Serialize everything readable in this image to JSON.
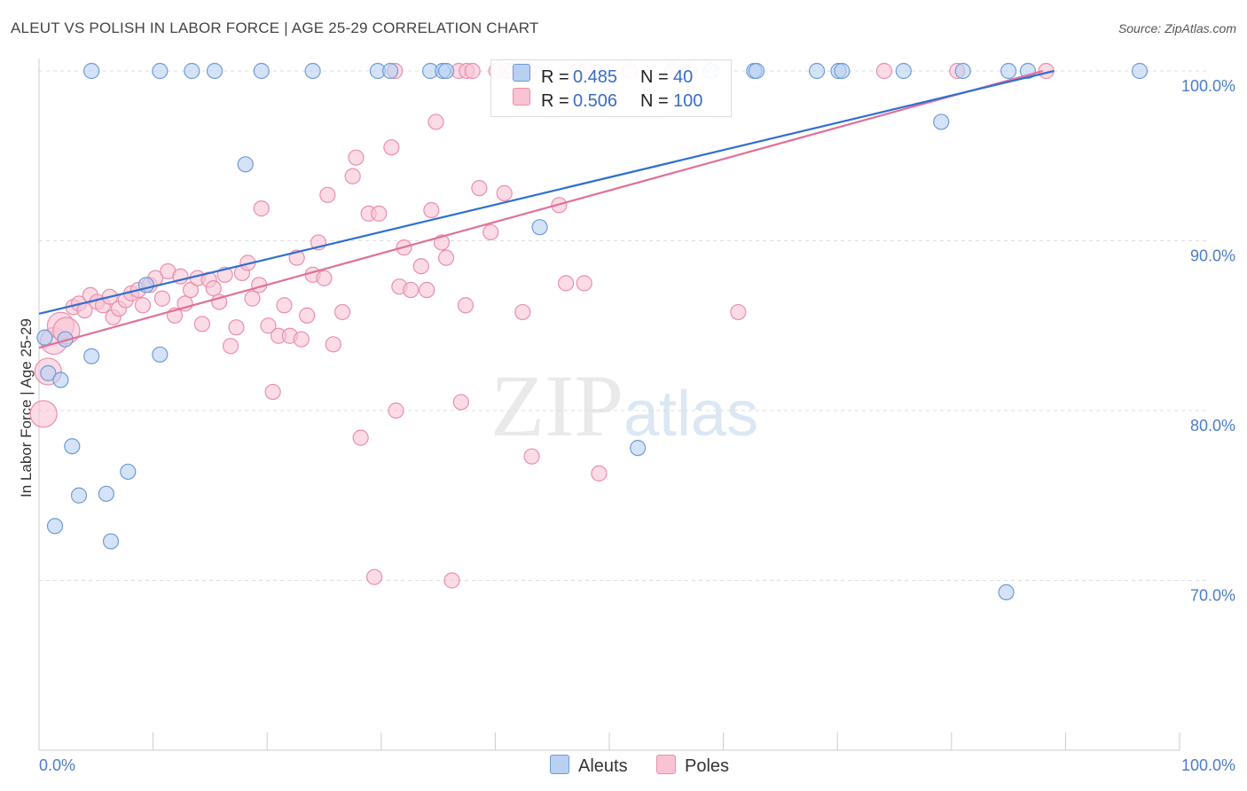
{
  "title": "ALEUT VS POLISH IN LABOR FORCE | AGE 25-29 CORRELATION CHART",
  "source": "Source: ZipAtlas.com",
  "watermark": {
    "zip": "ZIP",
    "atlas": "atlas"
  },
  "colors": {
    "aleut_fill": "#b8d0f2",
    "aleut_stroke": "#6f9bd6",
    "aleut_line": "#2f6fd0",
    "poles_fill": "#f8c3d3",
    "poles_stroke": "#e98fac",
    "poles_line": "#e0709a",
    "grid": "#dddddd",
    "tick_text": "#4a7cc9"
  },
  "legend": {
    "rows": [
      {
        "r_label": "R =",
        "r_value": "0.485",
        "n_label": "N =",
        "n_value": "40"
      },
      {
        "r_label": "R =",
        "r_value": "0.506",
        "n_label": "N =",
        "n_value": "100"
      }
    ]
  },
  "bottom_legend": {
    "aleuts": "Aleuts",
    "poles": "Poles"
  },
  "chart_data": {
    "type": "scatter",
    "title": "ALEUT VS POLISH IN LABOR FORCE | AGE 25-29 CORRELATION CHART",
    "xlabel": "",
    "ylabel": "In Labor Force | Age 25-29",
    "xlim": [
      0,
      100
    ],
    "ylim": [
      60,
      100
    ],
    "x_tick_labels": [
      "0.0%",
      "100.0%"
    ],
    "y_ticks": [
      70,
      80,
      90,
      100
    ],
    "y_tick_labels": [
      "70.0%",
      "80.0%",
      "90.0%",
      "100.0%"
    ],
    "grid": "horizontal dashed",
    "legend_position": "top-center",
    "series": [
      {
        "name": "Aleuts",
        "r": 0.485,
        "n": 40,
        "trend": [
          [
            0,
            85.7
          ],
          [
            89,
            100
          ]
        ],
        "points": [
          [
            0.5,
            84.3
          ],
          [
            0.8,
            82.2
          ],
          [
            1.4,
            73.2
          ],
          [
            1.9,
            81.8
          ],
          [
            2.3,
            84.2
          ],
          [
            2.9,
            77.9
          ],
          [
            3.5,
            75.0
          ],
          [
            4.6,
            83.2
          ],
          [
            5.9,
            75.1
          ],
          [
            6.3,
            72.3
          ],
          [
            7.8,
            76.4
          ],
          [
            9.4,
            87.4
          ],
          [
            10.6,
            83.3
          ],
          [
            18.1,
            94.5
          ],
          [
            43.9,
            90.8
          ],
          [
            52.5,
            77.8
          ],
          [
            79.1,
            97.0
          ],
          [
            84.8,
            69.3
          ],
          [
            4.6,
            100
          ],
          [
            10.6,
            100
          ],
          [
            13.4,
            100
          ],
          [
            15.4,
            100
          ],
          [
            19.5,
            100
          ],
          [
            24.0,
            100
          ],
          [
            29.7,
            100
          ],
          [
            30.8,
            100
          ],
          [
            34.3,
            100
          ],
          [
            35.4,
            100
          ],
          [
            35.7,
            100
          ],
          [
            58.9,
            100
          ],
          [
            62.7,
            100
          ],
          [
            62.9,
            100
          ],
          [
            68.2,
            100
          ],
          [
            70.1,
            100
          ],
          [
            70.4,
            100
          ],
          [
            75.8,
            100
          ],
          [
            81.0,
            100
          ],
          [
            85.0,
            100
          ],
          [
            86.7,
            100
          ],
          [
            96.5,
            100
          ]
        ]
      },
      {
        "name": "Poles",
        "r": 0.506,
        "n": 100,
        "trend": [
          [
            0,
            83.7
          ],
          [
            88,
            100
          ]
        ],
        "points": [
          [
            0.4,
            79.8
          ],
          [
            0.8,
            82.3
          ],
          [
            1.3,
            84.1
          ],
          [
            1.9,
            85.0
          ],
          [
            2.4,
            84.7
          ],
          [
            3.0,
            86.1
          ],
          [
            3.5,
            86.3
          ],
          [
            4.0,
            85.9
          ],
          [
            4.5,
            86.8
          ],
          [
            5.1,
            86.4
          ],
          [
            5.6,
            86.2
          ],
          [
            6.2,
            86.7
          ],
          [
            6.5,
            85.5
          ],
          [
            7.0,
            86.0
          ],
          [
            7.6,
            86.5
          ],
          [
            8.1,
            86.9
          ],
          [
            8.7,
            87.1
          ],
          [
            9.1,
            86.2
          ],
          [
            9.7,
            87.4
          ],
          [
            10.2,
            87.8
          ],
          [
            10.8,
            86.6
          ],
          [
            11.3,
            88.2
          ],
          [
            11.9,
            85.6
          ],
          [
            12.4,
            87.9
          ],
          [
            12.8,
            86.3
          ],
          [
            13.3,
            87.1
          ],
          [
            13.9,
            87.8
          ],
          [
            14.3,
            85.1
          ],
          [
            14.9,
            87.7
          ],
          [
            15.3,
            87.2
          ],
          [
            15.8,
            86.4
          ],
          [
            16.3,
            88.0
          ],
          [
            16.8,
            83.8
          ],
          [
            17.3,
            84.9
          ],
          [
            17.8,
            88.1
          ],
          [
            18.3,
            88.7
          ],
          [
            18.7,
            86.6
          ],
          [
            19.3,
            87.4
          ],
          [
            19.5,
            91.9
          ],
          [
            20.1,
            85.0
          ],
          [
            20.5,
            81.1
          ],
          [
            21.0,
            84.4
          ],
          [
            21.5,
            86.2
          ],
          [
            22.0,
            84.4
          ],
          [
            22.6,
            89.0
          ],
          [
            23.0,
            84.2
          ],
          [
            23.5,
            85.6
          ],
          [
            24.0,
            88.0
          ],
          [
            24.5,
            89.9
          ],
          [
            25.0,
            87.8
          ],
          [
            25.3,
            92.7
          ],
          [
            25.8,
            83.9
          ],
          [
            26.6,
            85.8
          ],
          [
            27.5,
            93.8
          ],
          [
            27.8,
            94.9
          ],
          [
            28.2,
            78.4
          ],
          [
            28.9,
            91.6
          ],
          [
            29.4,
            70.2
          ],
          [
            29.8,
            91.6
          ],
          [
            30.9,
            95.5
          ],
          [
            31.3,
            80.0
          ],
          [
            31.6,
            87.3
          ],
          [
            32.0,
            89.6
          ],
          [
            32.6,
            87.1
          ],
          [
            33.5,
            88.5
          ],
          [
            34.0,
            87.1
          ],
          [
            34.4,
            91.8
          ],
          [
            34.8,
            97.0
          ],
          [
            35.3,
            89.9
          ],
          [
            35.7,
            89.0
          ],
          [
            36.2,
            70.0
          ],
          [
            37.0,
            80.5
          ],
          [
            37.4,
            86.2
          ],
          [
            38.6,
            93.1
          ],
          [
            39.6,
            90.5
          ],
          [
            40.8,
            92.8
          ],
          [
            42.4,
            85.8
          ],
          [
            43.2,
            77.3
          ],
          [
            45.6,
            92.1
          ],
          [
            46.2,
            87.5
          ],
          [
            47.8,
            87.5
          ],
          [
            49.1,
            76.3
          ],
          [
            61.3,
            85.8
          ],
          [
            31.2,
            100
          ],
          [
            36.8,
            100
          ],
          [
            37.5,
            100
          ],
          [
            38.0,
            100
          ],
          [
            40.1,
            100
          ],
          [
            41.0,
            100
          ],
          [
            41.5,
            100
          ],
          [
            42.1,
            100
          ],
          [
            42.9,
            100
          ],
          [
            47.2,
            100
          ],
          [
            48.0,
            100
          ],
          [
            51.8,
            100
          ],
          [
            55.5,
            100
          ],
          [
            57.1,
            100
          ],
          [
            74.1,
            100
          ],
          [
            80.5,
            100
          ],
          [
            88.3,
            100
          ]
        ]
      }
    ]
  }
}
